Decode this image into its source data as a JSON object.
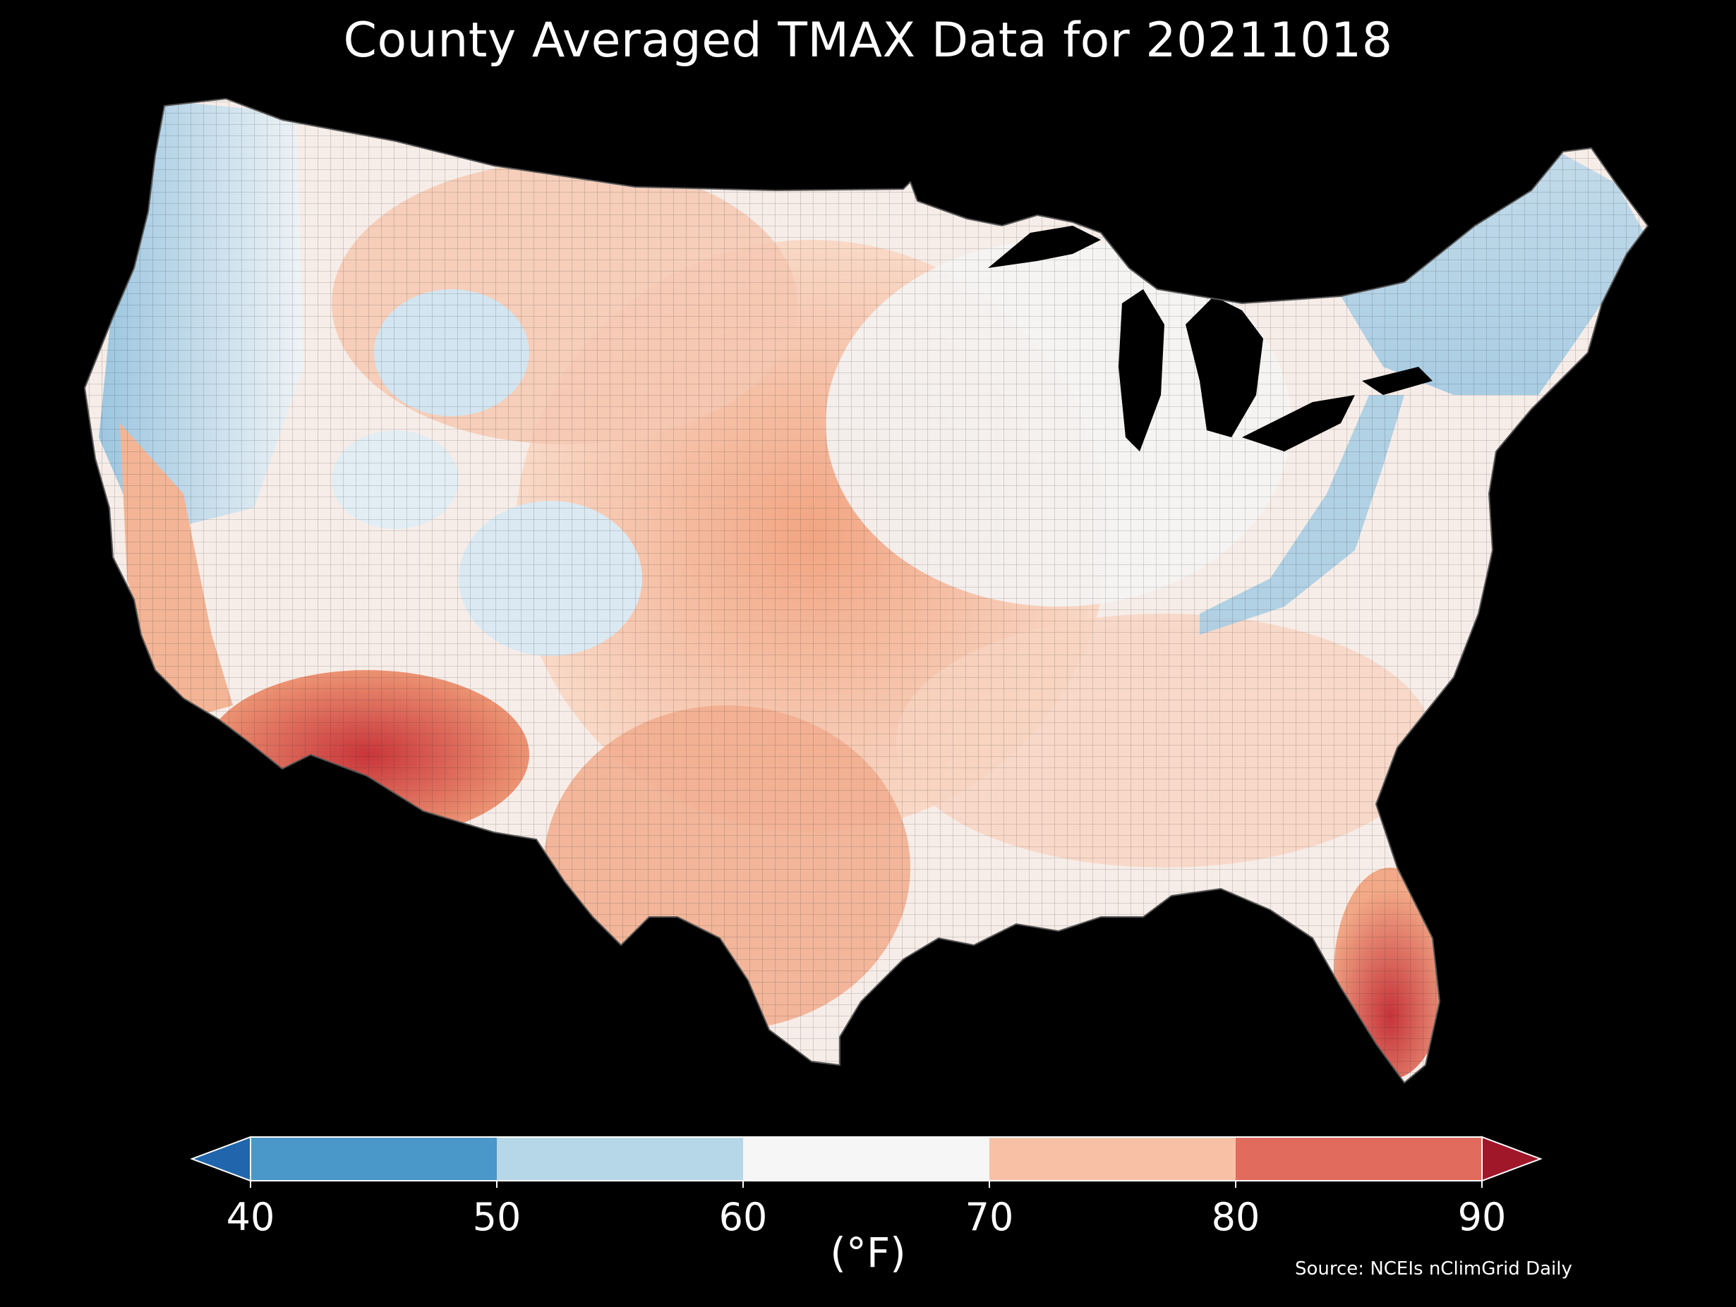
{
  "title": "County Averaged TMAX Data for 20211018",
  "colorbar": {
    "ticks": [
      "40",
      "50",
      "60",
      "70",
      "80",
      "90"
    ],
    "unit": "(°F)",
    "bins": [
      {
        "from": 40,
        "to": 50,
        "color": "#4a97c9"
      },
      {
        "from": 50,
        "to": 60,
        "color": "#b6d7e8"
      },
      {
        "from": 60,
        "to": 70,
        "color": "#f6f6f6"
      },
      {
        "from": 70,
        "to": 80,
        "color": "#f8c1a6"
      },
      {
        "from": 80,
        "to": 90,
        "color": "#e16b5c"
      }
    ],
    "under_color": "#2166ac",
    "over_color": "#a0172a"
  },
  "map": {
    "region": "Contiguous United States",
    "ocean_color": "#000000",
    "county_border_color": "#222222",
    "temperature_pattern": [
      {
        "area": "Pacific Northwest coast",
        "tmax_range": "50-60"
      },
      {
        "area": "Northern Plains",
        "tmax_range": "70-80"
      },
      {
        "area": "Central Plains",
        "tmax_range": "70-80"
      },
      {
        "area": "Southwest Arizona",
        "tmax_range": "80-90"
      },
      {
        "area": "South Florida",
        "tmax_range": "80-90"
      },
      {
        "area": "Appalachians",
        "tmax_range": "50-60"
      },
      {
        "area": "New England",
        "tmax_range": "50-60"
      },
      {
        "area": "Great Lakes",
        "tmax_range": "60-70"
      },
      {
        "area": "Texas",
        "tmax_range": "70-80"
      }
    ]
  },
  "source": "Source: NCEIs nClimGrid Daily"
}
